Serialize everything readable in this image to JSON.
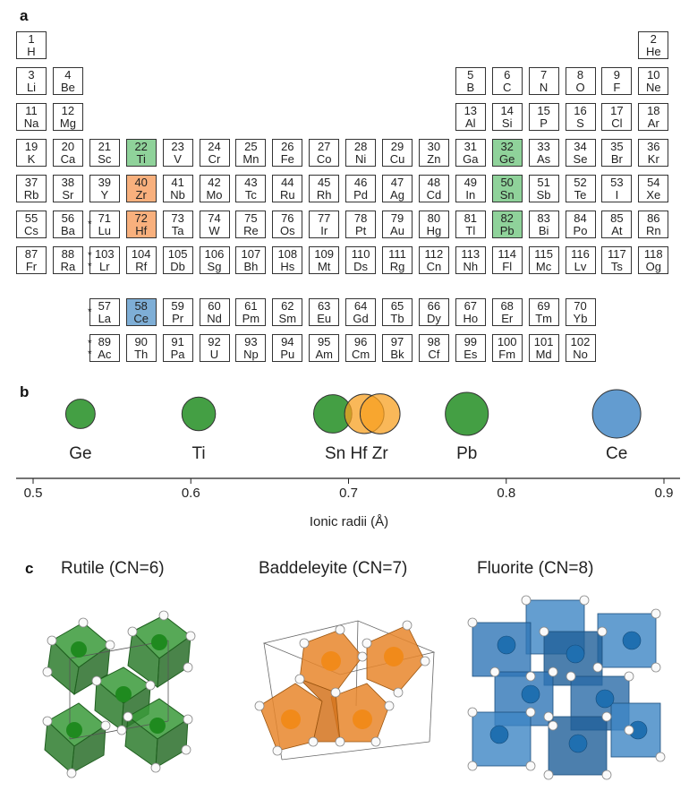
{
  "panels": {
    "a": "a",
    "b": "b",
    "c": "c"
  },
  "periodic_table": {
    "cells": [
      {
        "num": "1",
        "sym": "H",
        "row": 1,
        "col": 1
      },
      {
        "num": "2",
        "sym": "He",
        "row": 1,
        "col": 18
      },
      {
        "num": "3",
        "sym": "Li",
        "row": 2,
        "col": 1
      },
      {
        "num": "4",
        "sym": "Be",
        "row": 2,
        "col": 2
      },
      {
        "num": "5",
        "sym": "B",
        "row": 2,
        "col": 13
      },
      {
        "num": "6",
        "sym": "C",
        "row": 2,
        "col": 14
      },
      {
        "num": "7",
        "sym": "N",
        "row": 2,
        "col": 15
      },
      {
        "num": "8",
        "sym": "O",
        "row": 2,
        "col": 16
      },
      {
        "num": "9",
        "sym": "F",
        "row": 2,
        "col": 17
      },
      {
        "num": "10",
        "sym": "Ne",
        "row": 2,
        "col": 18
      },
      {
        "num": "11",
        "sym": "Na",
        "row": 3,
        "col": 1
      },
      {
        "num": "12",
        "sym": "Mg",
        "row": 3,
        "col": 2
      },
      {
        "num": "13",
        "sym": "Al",
        "row": 3,
        "col": 13
      },
      {
        "num": "14",
        "sym": "Si",
        "row": 3,
        "col": 14
      },
      {
        "num": "15",
        "sym": "P",
        "row": 3,
        "col": 15
      },
      {
        "num": "16",
        "sym": "S",
        "row": 3,
        "col": 16
      },
      {
        "num": "17",
        "sym": "Cl",
        "row": 3,
        "col": 17
      },
      {
        "num": "18",
        "sym": "Ar",
        "row": 3,
        "col": 18
      },
      {
        "num": "19",
        "sym": "K",
        "row": 4,
        "col": 1
      },
      {
        "num": "20",
        "sym": "Ca",
        "row": 4,
        "col": 2
      },
      {
        "num": "21",
        "sym": "Sc",
        "row": 4,
        "col": 3
      },
      {
        "num": "22",
        "sym": "Ti",
        "row": 4,
        "col": 4,
        "hl": "green"
      },
      {
        "num": "23",
        "sym": "V",
        "row": 4,
        "col": 5
      },
      {
        "num": "24",
        "sym": "Cr",
        "row": 4,
        "col": 6
      },
      {
        "num": "25",
        "sym": "Mn",
        "row": 4,
        "col": 7
      },
      {
        "num": "26",
        "sym": "Fe",
        "row": 4,
        "col": 8
      },
      {
        "num": "27",
        "sym": "Co",
        "row": 4,
        "col": 9
      },
      {
        "num": "28",
        "sym": "Ni",
        "row": 4,
        "col": 10
      },
      {
        "num": "29",
        "sym": "Cu",
        "row": 4,
        "col": 11
      },
      {
        "num": "30",
        "sym": "Zn",
        "row": 4,
        "col": 12
      },
      {
        "num": "31",
        "sym": "Ga",
        "row": 4,
        "col": 13
      },
      {
        "num": "32",
        "sym": "Ge",
        "row": 4,
        "col": 14,
        "hl": "green"
      },
      {
        "num": "33",
        "sym": "As",
        "row": 4,
        "col": 15
      },
      {
        "num": "34",
        "sym": "Se",
        "row": 4,
        "col": 16
      },
      {
        "num": "35",
        "sym": "Br",
        "row": 4,
        "col": 17
      },
      {
        "num": "36",
        "sym": "Kr",
        "row": 4,
        "col": 18
      },
      {
        "num": "37",
        "sym": "Rb",
        "row": 5,
        "col": 1
      },
      {
        "num": "38",
        "sym": "Sr",
        "row": 5,
        "col": 2
      },
      {
        "num": "39",
        "sym": "Y",
        "row": 5,
        "col": 3
      },
      {
        "num": "40",
        "sym": "Zr",
        "row": 5,
        "col": 4,
        "hl": "orange"
      },
      {
        "num": "41",
        "sym": "Nb",
        "row": 5,
        "col": 5
      },
      {
        "num": "42",
        "sym": "Mo",
        "row": 5,
        "col": 6
      },
      {
        "num": "43",
        "sym": "Tc",
        "row": 5,
        "col": 7
      },
      {
        "num": "44",
        "sym": "Ru",
        "row": 5,
        "col": 8
      },
      {
        "num": "45",
        "sym": "Rh",
        "row": 5,
        "col": 9
      },
      {
        "num": "46",
        "sym": "Pd",
        "row": 5,
        "col": 10
      },
      {
        "num": "47",
        "sym": "Ag",
        "row": 5,
        "col": 11
      },
      {
        "num": "48",
        "sym": "Cd",
        "row": 5,
        "col": 12
      },
      {
        "num": "49",
        "sym": "In",
        "row": 5,
        "col": 13
      },
      {
        "num": "50",
        "sym": "Sn",
        "row": 5,
        "col": 14,
        "hl": "green"
      },
      {
        "num": "51",
        "sym": "Sb",
        "row": 5,
        "col": 15
      },
      {
        "num": "52",
        "sym": "Te",
        "row": 5,
        "col": 16
      },
      {
        "num": "53",
        "sym": "I",
        "row": 5,
        "col": 17
      },
      {
        "num": "54",
        "sym": "Xe",
        "row": 5,
        "col": 18
      },
      {
        "num": "55",
        "sym": "Cs",
        "row": 6,
        "col": 1
      },
      {
        "num": "56",
        "sym": "Ba",
        "row": 6,
        "col": 2
      },
      {
        "num": "71",
        "sym": "Lu",
        "row": 6,
        "col": 3
      },
      {
        "num": "72",
        "sym": "Hf",
        "row": 6,
        "col": 4,
        "hl": "orange"
      },
      {
        "num": "73",
        "sym": "Ta",
        "row": 6,
        "col": 5
      },
      {
        "num": "74",
        "sym": "W",
        "row": 6,
        "col": 6
      },
      {
        "num": "75",
        "sym": "Re",
        "row": 6,
        "col": 7
      },
      {
        "num": "76",
        "sym": "Os",
        "row": 6,
        "col": 8
      },
      {
        "num": "77",
        "sym": "Ir",
        "row": 6,
        "col": 9
      },
      {
        "num": "78",
        "sym": "Pt",
        "row": 6,
        "col": 10
      },
      {
        "num": "79",
        "sym": "Au",
        "row": 6,
        "col": 11
      },
      {
        "num": "80",
        "sym": "Hg",
        "row": 6,
        "col": 12
      },
      {
        "num": "81",
        "sym": "Tl",
        "row": 6,
        "col": 13
      },
      {
        "num": "82",
        "sym": "Pb",
        "row": 6,
        "col": 14,
        "hl": "green"
      },
      {
        "num": "83",
        "sym": "Bi",
        "row": 6,
        "col": 15
      },
      {
        "num": "84",
        "sym": "Po",
        "row": 6,
        "col": 16
      },
      {
        "num": "85",
        "sym": "At",
        "row": 6,
        "col": 17
      },
      {
        "num": "86",
        "sym": "Rn",
        "row": 6,
        "col": 18
      },
      {
        "num": "87",
        "sym": "Fr",
        "row": 7,
        "col": 1
      },
      {
        "num": "88",
        "sym": "Ra",
        "row": 7,
        "col": 2
      },
      {
        "num": "103",
        "sym": "Lr",
        "row": 7,
        "col": 3
      },
      {
        "num": "104",
        "sym": "Rf",
        "row": 7,
        "col": 4
      },
      {
        "num": "105",
        "sym": "Db",
        "row": 7,
        "col": 5
      },
      {
        "num": "106",
        "sym": "Sg",
        "row": 7,
        "col": 6
      },
      {
        "num": "107",
        "sym": "Bh",
        "row": 7,
        "col": 7
      },
      {
        "num": "108",
        "sym": "Hs",
        "row": 7,
        "col": 8
      },
      {
        "num": "109",
        "sym": "Mt",
        "row": 7,
        "col": 9
      },
      {
        "num": "110",
        "sym": "Ds",
        "row": 7,
        "col": 10
      },
      {
        "num": "111",
        "sym": "Rg",
        "row": 7,
        "col": 11
      },
      {
        "num": "112",
        "sym": "Cn",
        "row": 7,
        "col": 12
      },
      {
        "num": "113",
        "sym": "Nh",
        "row": 7,
        "col": 13
      },
      {
        "num": "114",
        "sym": "Fl",
        "row": 7,
        "col": 14
      },
      {
        "num": "115",
        "sym": "Mc",
        "row": 7,
        "col": 15
      },
      {
        "num": "116",
        "sym": "Lv",
        "row": 7,
        "col": 16
      },
      {
        "num": "117",
        "sym": "Ts",
        "row": 7,
        "col": 17
      },
      {
        "num": "118",
        "sym": "Og",
        "row": 7,
        "col": 18
      },
      {
        "num": "57",
        "sym": "La",
        "row": 8,
        "col": 3
      },
      {
        "num": "58",
        "sym": "Ce",
        "row": 8,
        "col": 4,
        "hl": "blue"
      },
      {
        "num": "59",
        "sym": "Pr",
        "row": 8,
        "col": 5
      },
      {
        "num": "60",
        "sym": "Nd",
        "row": 8,
        "col": 6
      },
      {
        "num": "61",
        "sym": "Pm",
        "row": 8,
        "col": 7
      },
      {
        "num": "62",
        "sym": "Sm",
        "row": 8,
        "col": 8
      },
      {
        "num": "63",
        "sym": "Eu",
        "row": 8,
        "col": 9
      },
      {
        "num": "64",
        "sym": "Gd",
        "row": 8,
        "col": 10
      },
      {
        "num": "65",
        "sym": "Tb",
        "row": 8,
        "col": 11
      },
      {
        "num": "66",
        "sym": "Dy",
        "row": 8,
        "col": 12
      },
      {
        "num": "67",
        "sym": "Ho",
        "row": 8,
        "col": 13
      },
      {
        "num": "68",
        "sym": "Er",
        "row": 8,
        "col": 14
      },
      {
        "num": "69",
        "sym": "Tm",
        "row": 8,
        "col": 15
      },
      {
        "num": "70",
        "sym": "Yb",
        "row": 8,
        "col": 16
      },
      {
        "num": "89",
        "sym": "Ac",
        "row": 9,
        "col": 3
      },
      {
        "num": "90",
        "sym": "Th",
        "row": 9,
        "col": 4
      },
      {
        "num": "91",
        "sym": "Pa",
        "row": 9,
        "col": 5
      },
      {
        "num": "92",
        "sym": "U",
        "row": 9,
        "col": 6
      },
      {
        "num": "93",
        "sym": "Np",
        "row": 9,
        "col": 7
      },
      {
        "num": "94",
        "sym": "Pu",
        "row": 9,
        "col": 8
      },
      {
        "num": "95",
        "sym": "Am",
        "row": 9,
        "col": 9
      },
      {
        "num": "96",
        "sym": "Cm",
        "row": 9,
        "col": 10
      },
      {
        "num": "97",
        "sym": "Bk",
        "row": 9,
        "col": 11
      },
      {
        "num": "98",
        "sym": "Cf",
        "row": 9,
        "col": 12
      },
      {
        "num": "99",
        "sym": "Es",
        "row": 9,
        "col": 13
      },
      {
        "num": "100",
        "sym": "Fm",
        "row": 9,
        "col": 14
      },
      {
        "num": "101",
        "sym": "Md",
        "row": 9,
        "col": 15
      },
      {
        "num": "102",
        "sym": "No",
        "row": 9,
        "col": 16
      }
    ],
    "stars": [
      {
        "row": 6,
        "text": "*"
      },
      {
        "row": 7,
        "text": "* *"
      },
      {
        "row": 8,
        "text": "*"
      },
      {
        "row": 9,
        "text": "* *"
      }
    ],
    "colors": {
      "green": "#8fd29a",
      "orange": "#f8b07d",
      "blue": "#7eaed6"
    }
  },
  "ionic_radii": {
    "axis_title": "Ionic radii (Å)",
    "xlim": [
      0.49,
      0.91
    ],
    "ticks": [
      "0.5",
      "0.6",
      "0.7",
      "0.8",
      "0.9"
    ],
    "tick_values": [
      0.5,
      0.6,
      0.7,
      0.8,
      0.9
    ],
    "ions": [
      {
        "name": "Ge",
        "radius": 0.53,
        "color": "green"
      },
      {
        "name": "Ti",
        "radius": 0.605,
        "color": "green"
      },
      {
        "name": "Sn",
        "radius": 0.69,
        "color": "green"
      },
      {
        "name": "Hf",
        "radius": 0.71,
        "color": "orange"
      },
      {
        "name": "Zr",
        "radius": 0.72,
        "color": "orange"
      },
      {
        "name": "Pb",
        "radius": 0.775,
        "color": "green"
      },
      {
        "name": "Ce",
        "radius": 0.87,
        "color": "blue"
      }
    ],
    "label_row": [
      {
        "text": "Ge",
        "at": 0.53
      },
      {
        "text": "Ti",
        "at": 0.605
      },
      {
        "text": "Sn Hf Zr",
        "at": 0.705
      },
      {
        "text": "Pb",
        "at": 0.775
      },
      {
        "text": "Ce",
        "at": 0.87
      }
    ],
    "colors": {
      "green": "#3a9a3a",
      "orange": "#f7a021",
      "blue": "#5b97cd"
    }
  },
  "structures": {
    "titles": [
      "Rutile (CN=6)",
      "Baddeleyite (CN=7)",
      "Fluorite (CN=8)"
    ],
    "colors": {
      "rutile": "#3a9a3a",
      "baddeleyite": "#e8862b",
      "fluorite": "#2f76b6"
    }
  }
}
